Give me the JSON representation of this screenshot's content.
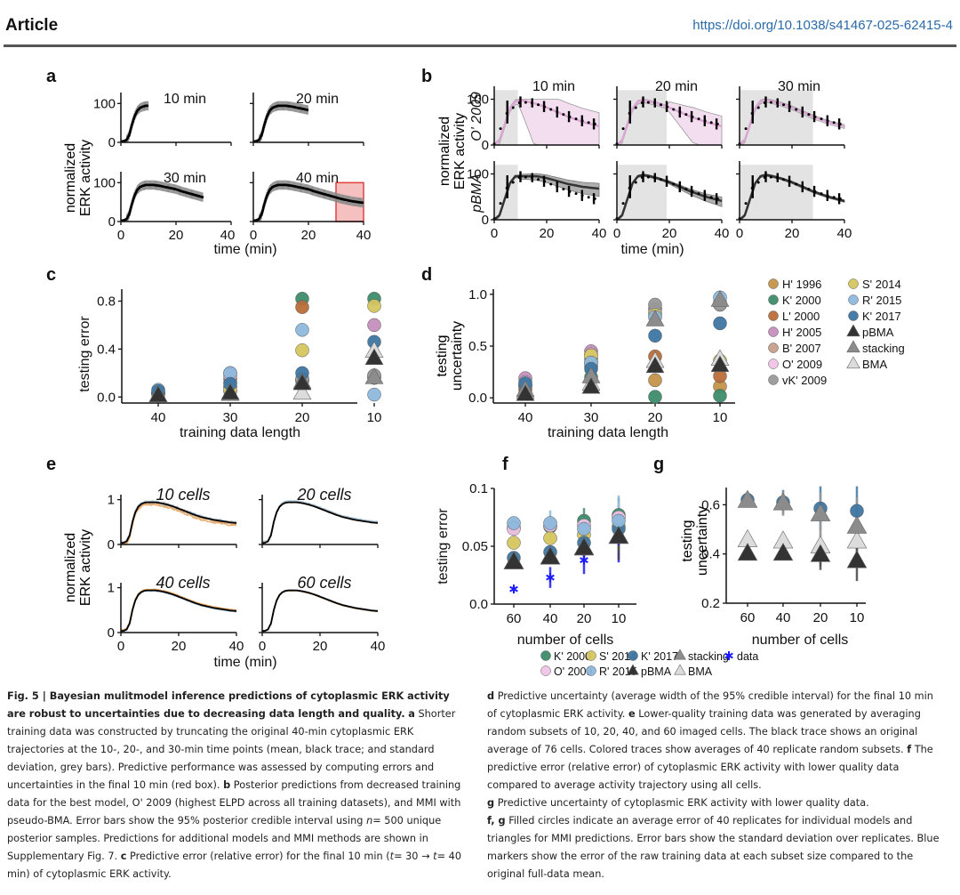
{
  "header": {
    "section": "Article",
    "doi": "https://doi.org/10.1038/s41467-025-62415-4"
  },
  "colors": {
    "H1996": "#c4934a",
    "K2000": "#3d8c6a",
    "L2000": "#b96e3a",
    "H2005": "#c58fbd",
    "B2007": "#c4a08a",
    "O2009": "#f0c3e6",
    "vK2009": "#999999",
    "S2014": "#d6c660",
    "R2015": "#8db8dc",
    "K2017": "#3e76a3",
    "pBMA": "#333333",
    "stacking": "#8c8c8c",
    "BMA": "#dcdcdc",
    "data": "#1a1aff",
    "redbox": "#e04040",
    "pink": "#e9c2e4"
  },
  "chart_data": [
    {
      "panel": "a",
      "type": "line",
      "ylabel": "normalized\nERK activity",
      "xlabel": "time (min)",
      "subplots": [
        {
          "title": "10 min",
          "xmax_data": 10
        },
        {
          "title": "20 min",
          "xmax_data": 20
        },
        {
          "title": "30 min",
          "xmax_data": 30
        },
        {
          "title": "40 min",
          "xmax_data": 40,
          "highlight": [
            30,
            40
          ]
        }
      ],
      "xlim": [
        0,
        40
      ],
      "ylim": [
        0,
        100
      ],
      "xticks": [
        0,
        20,
        40
      ],
      "yticks": [
        0,
        100
      ],
      "mean_curve": {
        "x": [
          0,
          1,
          2,
          3,
          4,
          5,
          6,
          7,
          8,
          9,
          10,
          12,
          14,
          16,
          18,
          20,
          22,
          24,
          26,
          28,
          30,
          32,
          34,
          36,
          38,
          40
        ],
        "y": [
          2,
          3,
          6,
          18,
          45,
          68,
          82,
          89,
          92,
          94,
          94,
          94,
          92,
          89,
          86,
          83,
          78,
          74,
          70,
          66,
          62,
          58,
          55,
          52,
          50,
          48
        ]
      },
      "sd": 12
    },
    {
      "panel": "b",
      "type": "line",
      "ylabel_rows": [
        "O' 2009",
        "pBMA"
      ],
      "ylabel_common": "normalized\nERK activity",
      "xlabel": "time (min)",
      "columns": [
        "10 min",
        "20 min",
        "30 min"
      ],
      "train_end": [
        9,
        19,
        28
      ],
      "xlim": [
        0,
        40
      ],
      "ylim": [
        0,
        100
      ],
      "xticks": [
        0,
        20,
        40
      ],
      "yticks": [
        0,
        100
      ],
      "data_points": {
        "x": [
          0,
          5,
          10,
          14.5,
          19,
          24,
          28.5,
          33.5,
          38
        ],
        "y": [
          2,
          72,
          94,
          92,
          84,
          72,
          62,
          53,
          46
        ],
        "err": [
          3,
          25,
          12,
          10,
          12,
          12,
          12,
          12,
          12
        ]
      }
    },
    {
      "panel": "c",
      "type": "scatter",
      "xlabel": "training data length",
      "ylabel": "testing error",
      "categories": [
        "40",
        "30",
        "20",
        "10"
      ],
      "ylim": [
        -0.05,
        0.9
      ],
      "yticks": [
        0.0,
        0.4,
        0.8
      ],
      "series": [
        {
          "name": "H' 1996",
          "values": [
            0.02,
            0.05,
            0.14,
            0.18
          ]
        },
        {
          "name": "K' 2000",
          "values": [
            0.03,
            0.08,
            0.82,
            0.82
          ]
        },
        {
          "name": "L' 2000",
          "values": [
            0.03,
            0.15,
            0.75,
            0.16
          ]
        },
        {
          "name": "H' 2005",
          "values": [
            0.03,
            0.2,
            0.15,
            0.6
          ]
        },
        {
          "name": "B' 2007",
          "values": [
            0.04,
            0.12,
            0.13,
            0.16
          ]
        },
        {
          "name": "O' 2009",
          "values": [
            0.03,
            0.18,
            0.14,
            0.17
          ]
        },
        {
          "name": "vK' 2009",
          "values": [
            0.03,
            0.09,
            0.15,
            0.18
          ]
        },
        {
          "name": "S' 2014",
          "values": [
            0.04,
            0.06,
            0.39,
            0.76
          ]
        },
        {
          "name": "R' 2015",
          "values": [
            0.06,
            0.2,
            0.56,
            0.02
          ]
        },
        {
          "name": "K' 2017",
          "values": [
            0.05,
            0.11,
            0.2,
            0.46
          ]
        },
        {
          "name": "BMA",
          "values": [
            0.01,
            0.02,
            0.03,
            0.38
          ]
        },
        {
          "name": "stacking",
          "values": [
            0.01,
            0.02,
            0.12,
            0.16
          ]
        },
        {
          "name": "pBMA",
          "values": [
            0.01,
            0.03,
            0.11,
            0.32
          ]
        }
      ]
    },
    {
      "panel": "d",
      "type": "scatter",
      "xlabel": "training data length",
      "ylabel": "testing\nuncertainty",
      "categories": [
        "40",
        "30",
        "20",
        "10"
      ],
      "ylim": [
        -0.05,
        1.05
      ],
      "yticks": [
        0.0,
        0.5,
        1.0
      ],
      "series": [
        {
          "name": "H' 1996",
          "values": [
            0.08,
            0.3,
            0.17,
            0.11
          ]
        },
        {
          "name": "K' 2000",
          "values": [
            0.05,
            0.2,
            0.01,
            0.02
          ]
        },
        {
          "name": "L' 2000",
          "values": [
            0.1,
            0.33,
            0.4,
            0.21
          ]
        },
        {
          "name": "H' 2005",
          "values": [
            0.19,
            0.45,
            0.86,
            0.9
          ]
        },
        {
          "name": "B' 2007",
          "values": [
            0.12,
            0.38,
            0.85,
            0.9
          ]
        },
        {
          "name": "O' 2009",
          "values": [
            0.15,
            0.42,
            0.82,
            0.92
          ]
        },
        {
          "name": "vK' 2009",
          "values": [
            0.11,
            0.35,
            0.9,
            0.9
          ]
        },
        {
          "name": "S' 2014",
          "values": [
            0.12,
            0.41,
            0.8,
            0.36
          ]
        },
        {
          "name": "R' 2015",
          "values": [
            0.13,
            0.34,
            0.78,
            0.97
          ]
        },
        {
          "name": "K' 2017",
          "values": [
            0.14,
            0.28,
            0.6,
            0.72
          ]
        },
        {
          "name": "BMA",
          "values": [
            0.05,
            0.13,
            0.35,
            0.37
          ]
        },
        {
          "name": "stacking",
          "values": [
            0.07,
            0.2,
            0.75,
            0.94
          ]
        },
        {
          "name": "pBMA",
          "values": [
            0.03,
            0.1,
            0.3,
            0.31
          ]
        }
      ],
      "legend": {
        "placement": "right",
        "col1": [
          "H' 1996",
          "K' 2000",
          "L' 2000",
          "H' 2005",
          "B' 2007",
          "O' 2009",
          " vK' 2009"
        ],
        "col2": [
          "S' 2014",
          "R' 2015",
          "K' 2017",
          "pBMA",
          "stacking",
          "BMA"
        ]
      }
    },
    {
      "panel": "e",
      "type": "line",
      "ylabel": "normalized\nERK activity",
      "xlabel": "time (min)",
      "subplots": [
        {
          "title": "10 cells",
          "noise": 0.06
        },
        {
          "title": "20 cells",
          "noise": 0.035
        },
        {
          "title": "40 cells",
          "noise": 0.02
        },
        {
          "title": "60 cells",
          "noise": 0.01
        }
      ],
      "xlim": [
        0,
        40
      ],
      "ylim": [
        0,
        1
      ],
      "xticks": [
        0,
        20,
        40
      ],
      "yticks": [
        0,
        1
      ],
      "mean_curve": {
        "x": [
          0,
          1,
          2,
          3,
          4,
          5,
          6,
          7,
          8,
          9,
          10,
          12,
          14,
          16,
          18,
          20,
          22,
          24,
          26,
          28,
          30,
          32,
          34,
          36,
          38,
          40
        ],
        "y": [
          0.03,
          0.04,
          0.07,
          0.2,
          0.5,
          0.72,
          0.84,
          0.9,
          0.93,
          0.94,
          0.94,
          0.94,
          0.92,
          0.89,
          0.85,
          0.8,
          0.75,
          0.7,
          0.65,
          0.61,
          0.58,
          0.55,
          0.53,
          0.51,
          0.49,
          0.48
        ]
      }
    },
    {
      "panel": "f",
      "type": "scatter",
      "xlabel": "number of cells",
      "ylabel": "testing error",
      "categories": [
        "60",
        "40",
        "20",
        "10"
      ],
      "ylim": [
        0,
        0.1
      ],
      "yticks": [
        0.0,
        0.05,
        0.1
      ],
      "series": [
        {
          "name": "K' 2000",
          "values": [
            0.066,
            0.067,
            0.072,
            0.077
          ],
          "err": [
            0.004,
            0.008,
            0.011,
            0.015
          ]
        },
        {
          "name": "S' 2014",
          "values": [
            0.053,
            0.057,
            0.06,
            0.067
          ],
          "err": [
            0.003,
            0.004,
            0.006,
            0.01
          ]
        },
        {
          "name": "K' 2017",
          "values": [
            0.04,
            0.045,
            0.053,
            0.065
          ],
          "err": [
            0.003,
            0.004,
            0.006,
            0.01
          ]
        },
        {
          "name": "O' 2009",
          "values": [
            0.065,
            0.068,
            0.068,
            0.075
          ],
          "err": [
            0.004,
            0.006,
            0.01,
            0.014
          ]
        },
        {
          "name": "R' 2015",
          "values": [
            0.07,
            0.07,
            0.065,
            0.072
          ],
          "err": [
            0.004,
            0.011,
            0.012,
            0.022
          ]
        },
        {
          "name": "stacking",
          "values": [
            0.036,
            0.04,
            0.048,
            0.058
          ],
          "err": [
            0.003,
            0.004,
            0.007,
            0.012
          ]
        },
        {
          "name": "BMA",
          "values": [
            0.036,
            0.04,
            0.048,
            0.058
          ],
          "err": [
            0.003,
            0.004,
            0.007,
            0.012
          ]
        },
        {
          "name": "pBMA",
          "values": [
            0.036,
            0.04,
            0.048,
            0.058
          ],
          "err": [
            0.003,
            0.004,
            0.008,
            0.02
          ]
        },
        {
          "name": "data",
          "values": [
            0.013,
            0.023,
            0.038,
            0.055
          ],
          "err": [
            0.002,
            0.009,
            0.012,
            0.019
          ]
        }
      ],
      "legend": {
        "placement": "bottom",
        "row1": [
          "K' 2000",
          "S' 2014",
          "K' 2017",
          "stacking",
          "data"
        ],
        "row2": [
          "O' 2009",
          "R' 2015",
          "pBMA",
          "BMA"
        ]
      }
    },
    {
      "panel": "g",
      "type": "scatter",
      "xlabel": "number of cells",
      "ylabel": "testing\nuncertainty",
      "categories": [
        "60",
        "40",
        "20",
        "10"
      ],
      "ylim": [
        0.2,
        0.67
      ],
      "yticks": [
        0.2,
        0.4,
        0.6
      ],
      "series": [
        {
          "name": "K' 2017",
          "values": [
            0.62,
            0.61,
            0.585,
            0.575
          ],
          "err": [
            0.02,
            0.05,
            0.09,
            0.1
          ]
        },
        {
          "name": "stacking",
          "values": [
            0.615,
            0.605,
            0.56,
            0.51
          ],
          "err": [
            0.02,
            0.05,
            0.09,
            0.12
          ]
        },
        {
          "name": "BMA",
          "values": [
            0.455,
            0.45,
            0.43,
            0.45
          ],
          "err": [
            0.01,
            0.02,
            0.08,
            0.1
          ]
        },
        {
          "name": "pBMA",
          "values": [
            0.4,
            0.4,
            0.395,
            0.37
          ],
          "err": [
            0.01,
            0.02,
            0.06,
            0.08
          ]
        }
      ]
    }
  ],
  "caption_left": {
    "title": "Fig. 5 | Bayesian mulitmodel inference predictions of cytoplasmic ERK activity are robust to uncertainties due to decreasing data length and quality.",
    "a_label": "a",
    "a_text": "Shorter training data was constructed by truncating the original 40-min cytoplasmic ERK trajectories at the 10-, 20-, and 30-min time points (mean, black trace; and standard deviation, grey bars). Predictive performance was assessed by computing errors and uncertainties in the final 10 min (red box).",
    "b_label": "b",
    "b_text1": "Posterior predictions from decreased training data for the best model, O' 2009 (highest ELPD across all training datasets), and MMI with pseudo-BMA. Error bars show the 95% posterior credible interval using",
    "b_n": "n",
    "b_text2": "= 500 unique posterior samples. Predictions for additional models and MMI methods are shown in Supplementary Fig. 7.",
    "c_label": "c",
    "c_text1": "Predictive error (relative error) for the final 10 min (",
    "c_t1": "t",
    "c_text2": "= 30 → ",
    "c_t2": "t",
    "c_text3": "= 40 min) of cytoplasmic ERK activity."
  },
  "caption_right": {
    "d_label": "d",
    "d_text": "Predictive uncertainty (average width of the 95% credible interval) for the final 10 min of cytoplasmic ERK activity.",
    "e_label": "e",
    "e_text": "Lower-quality training data was generated by averaging random subsets of 10, 20, 40, and 60 imaged cells. The black trace shows an original average of 76 cells. Colored traces show averages of 40 replicate random subsets.",
    "f_label": "f",
    "f_text": "The predictive error (relative error) of cytoplasmic ERK activity with lower quality data compared to average activity trajectory using all cells.",
    "g_label": "g",
    "g_text": "Predictive uncertainty of cytoplasmic ERK activity with lower quality data.",
    "fg_label": "f, g",
    "fg_text": "Filled circles indicate an average error of 40 replicates for individual models and triangles for MMI predictions. Error bars show the standard deviation over replicates. Blue markers show the error of the raw training data at each subset size compared to the original full-data mean."
  }
}
